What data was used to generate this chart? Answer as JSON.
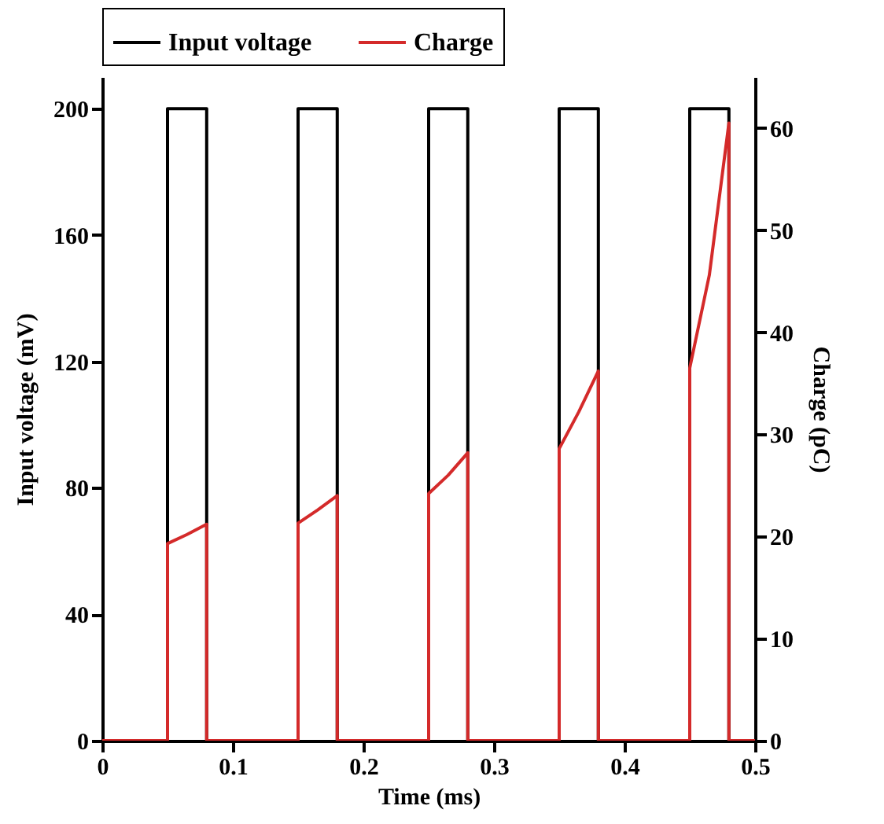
{
  "chart_data": {
    "type": "line",
    "xlabel": "Time (ms)",
    "ylabel": "Input voltage (mV)",
    "y2label": "Charge (pC)",
    "legend": "top",
    "xlim": [
      0,
      0.5
    ],
    "xticks": [
      0,
      0.1,
      0.2,
      0.3,
      0.4,
      0.5
    ],
    "ylim": [
      0,
      210
    ],
    "yticks": [
      0,
      40,
      80,
      120,
      160,
      200
    ],
    "y2lim": [
      0,
      65
    ],
    "y2ticks": [
      0,
      10,
      20,
      30,
      40,
      50,
      60
    ],
    "series": [
      {
        "name": "Input voltage",
        "color": "#000000",
        "x": [
          0,
          0.05,
          0.05,
          0.08,
          0.08,
          0.15,
          0.15,
          0.18,
          0.18,
          0.25,
          0.25,
          0.28,
          0.28,
          0.35,
          0.35,
          0.38,
          0.38,
          0.45,
          0.45,
          0.48,
          0.48,
          0.5
        ],
        "values": [
          0,
          0,
          200,
          200,
          0,
          0,
          200,
          200,
          0,
          0,
          200,
          200,
          0,
          0,
          200,
          200,
          0,
          0,
          200,
          200,
          0,
          0
        ]
      },
      {
        "name": "Charge",
        "color": "#d42a2a",
        "axis": "y2",
        "x": [
          0,
          0.05,
          0.05,
          0.065,
          0.08,
          0.08,
          0.15,
          0.15,
          0.165,
          0.18,
          0.18,
          0.25,
          0.25,
          0.265,
          0.28,
          0.28,
          0.35,
          0.35,
          0.365,
          0.38,
          0.38,
          0.45,
          0.45,
          0.465,
          0.48,
          0.48,
          0.5
        ],
        "values": [
          0,
          0,
          19.3,
          20.2,
          21.2,
          0,
          0,
          21.3,
          22.6,
          24.0,
          0,
          0,
          24.2,
          26.0,
          28.2,
          0,
          0,
          28.6,
          32.2,
          36.2,
          0,
          0,
          36.5,
          45.6,
          60.5,
          0,
          0
        ]
      }
    ]
  }
}
